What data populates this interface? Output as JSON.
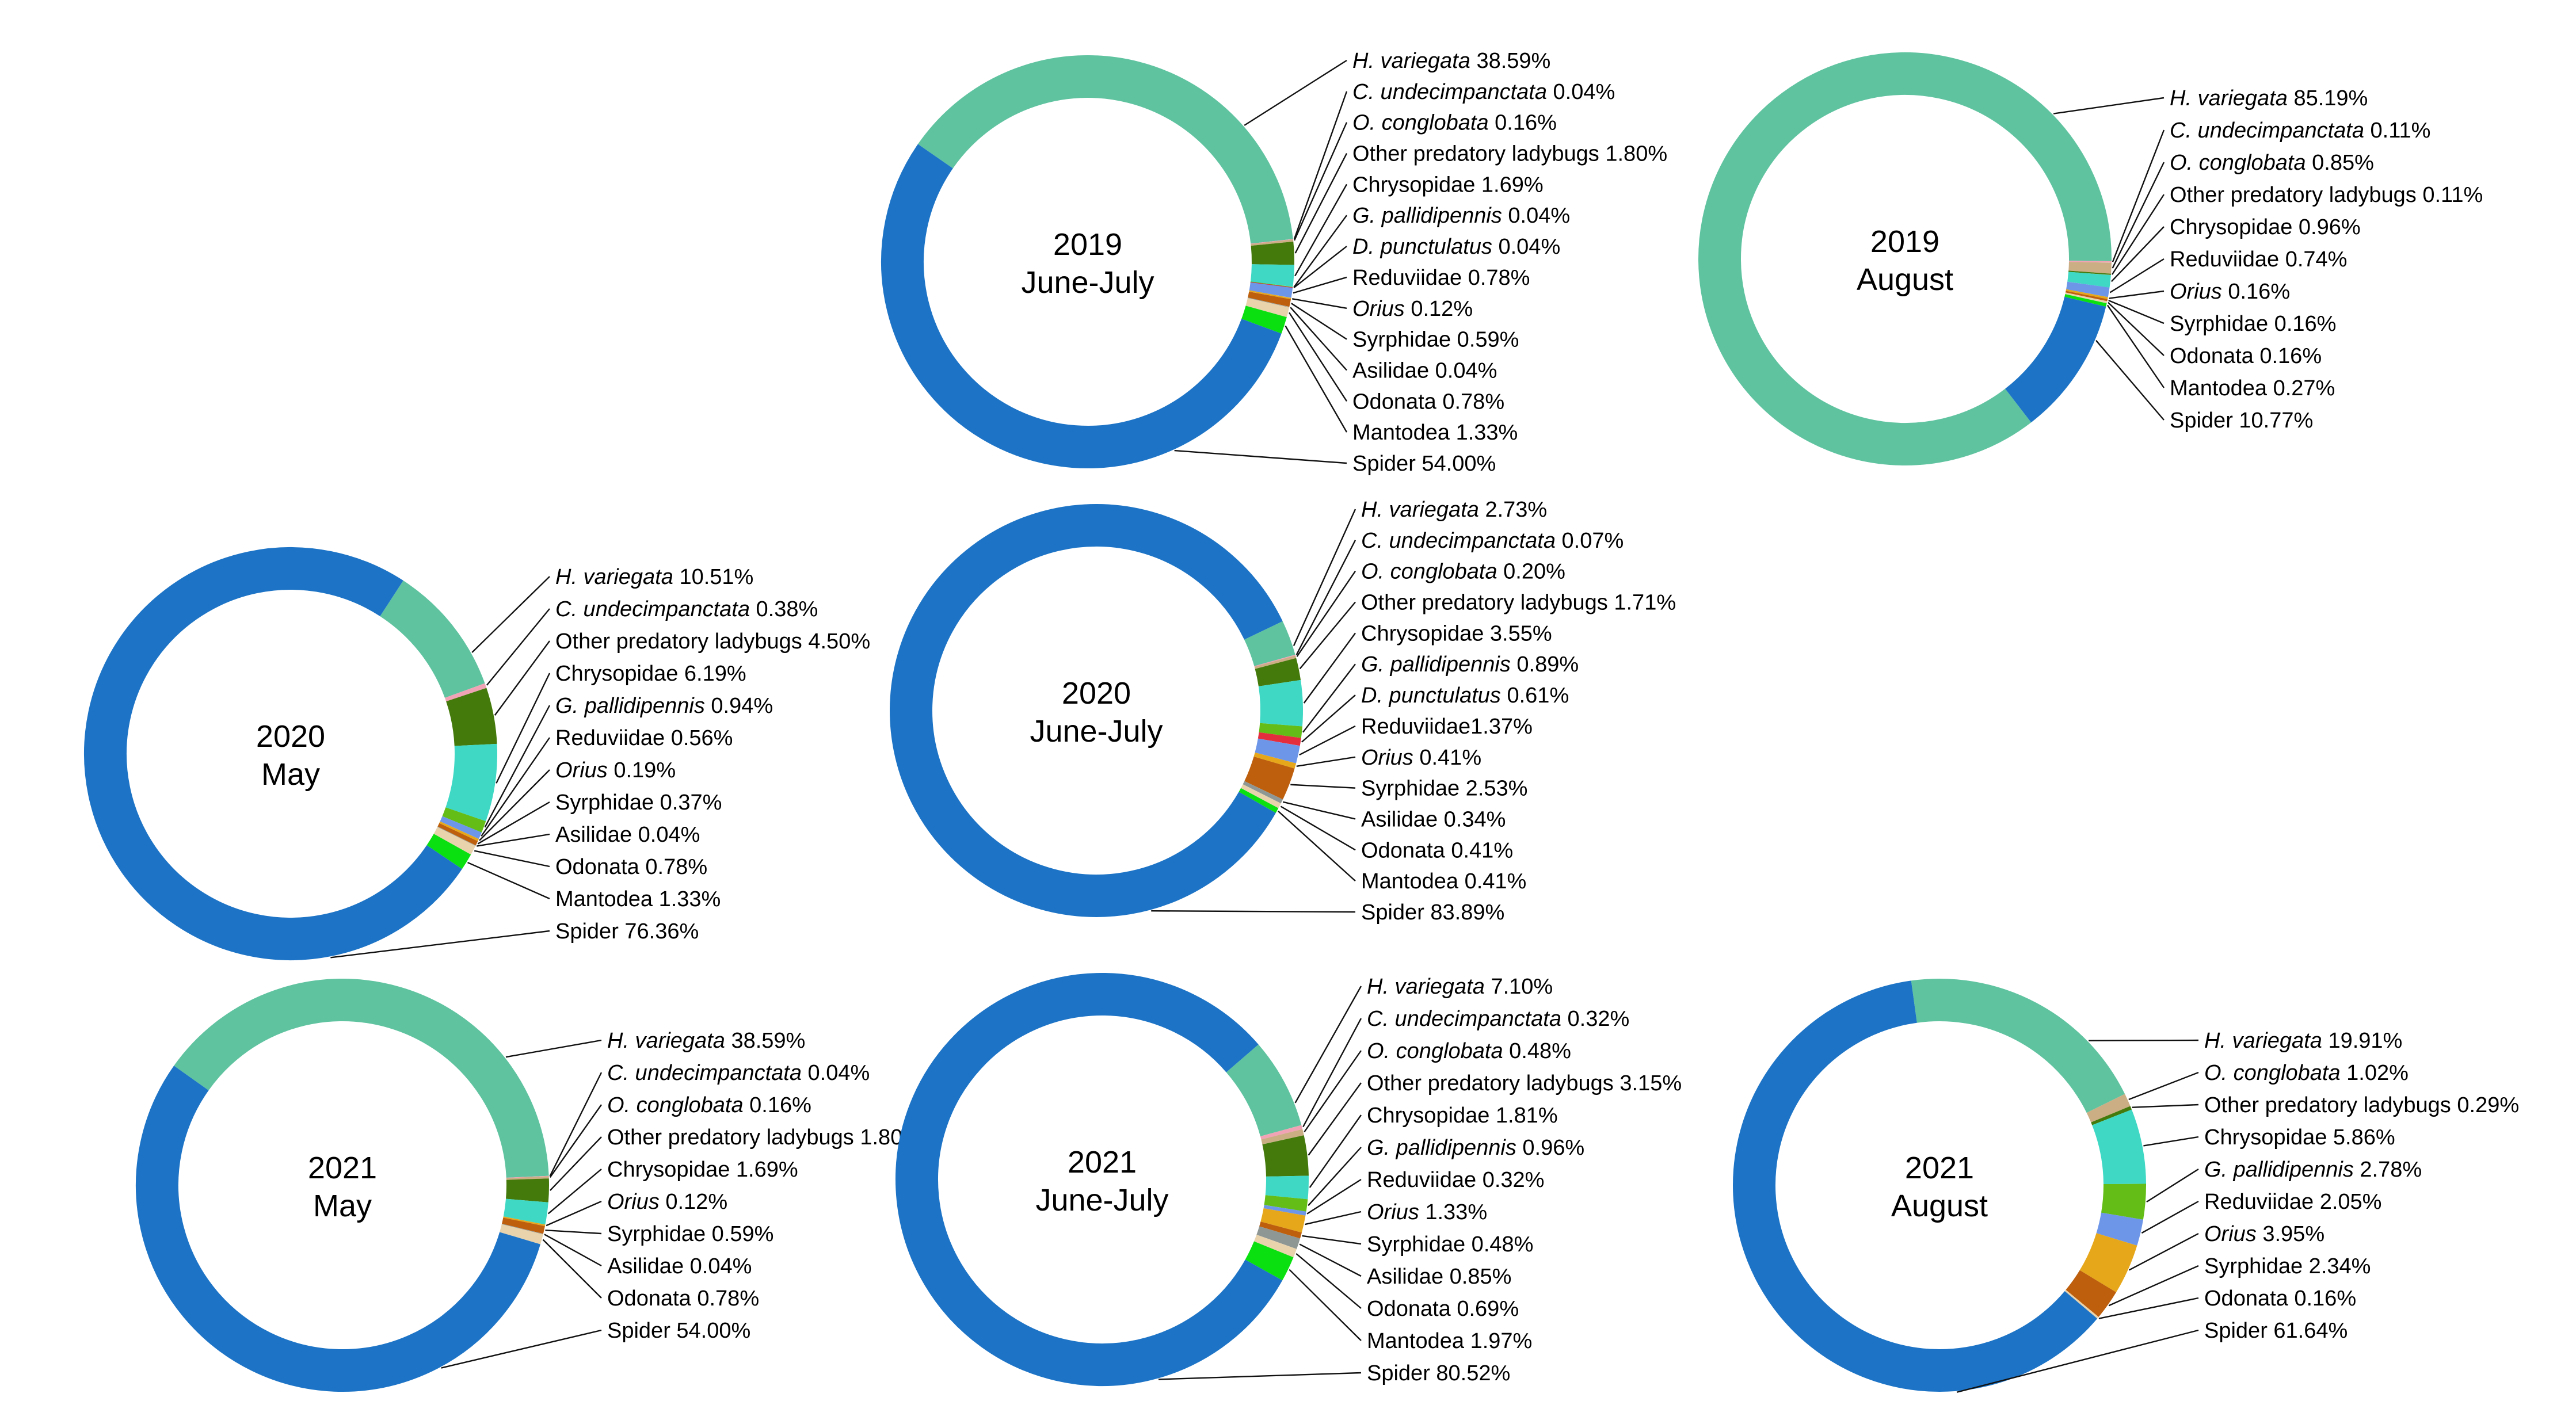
{
  "figure": {
    "background": "#ffffff",
    "description_labels": {
      "percent_suffix": "%"
    }
  },
  "chart_data": {
    "type": "pie",
    "variant": "donut-small-multiples",
    "unit": "%",
    "legend_position": "right-of-each-donut",
    "categories": [
      {
        "key": "h_variegata",
        "name": "H. variegata",
        "italic": true,
        "color": "#5fc3a0"
      },
      {
        "key": "c_undecimpanctata",
        "name": "C. undecimpanctata",
        "italic": true,
        "color": "#f0a3b4"
      },
      {
        "key": "o_conglobata",
        "name": "O. conglobata",
        "italic": true,
        "color": "#cbae84"
      },
      {
        "key": "other_ladybugs",
        "name": "Other predatory ladybugs",
        "italic": false,
        "color": "#447a0c"
      },
      {
        "key": "chrysopidae",
        "name": "Chrysopidae",
        "italic": false,
        "color": "#3ed8c4"
      },
      {
        "key": "g_pallidipennis",
        "name": "G. pallidipennis",
        "italic": true,
        "color": "#63bd16"
      },
      {
        "key": "d_punctulatus",
        "name": "D. punctulatus",
        "italic": true,
        "color": "#e52e3d"
      },
      {
        "key": "reduviidae",
        "name": "Reduviidae",
        "italic": false,
        "color": "#6d96e8"
      },
      {
        "key": "orius",
        "name": "Orius",
        "italic": true,
        "color": "#e7a71b"
      },
      {
        "key": "syrphidae",
        "name": "Syrphidae",
        "italic": false,
        "color": "#bd5f0d"
      },
      {
        "key": "asilidae",
        "name": "Asilidae",
        "italic": false,
        "color": "#8f9794"
      },
      {
        "key": "odonata",
        "name": "Odonata",
        "italic": false,
        "color": "#e8d3ad"
      },
      {
        "key": "mantodea",
        "name": "Mantodea",
        "italic": false,
        "color": "#0ae00f"
      },
      {
        "key": "spider",
        "name": "Spider",
        "italic": false,
        "color": "#1d74c6"
      }
    ],
    "charts": [
      {
        "id": "2019-june-july",
        "title": "2019 June-July",
        "title_lines": [
          "2019",
          "June-July"
        ],
        "slices": [
          {
            "key": "h_variegata",
            "value": 38.59,
            "text": "38.59%"
          },
          {
            "key": "c_undecimpanctata",
            "value": 0.04,
            "text": "0.04%"
          },
          {
            "key": "o_conglobata",
            "value": 0.16,
            "text": "0.16%"
          },
          {
            "key": "other_ladybugs",
            "value": 1.8,
            "text": "1.80%"
          },
          {
            "key": "chrysopidae",
            "value": 1.69,
            "text": "1.69%"
          },
          {
            "key": "g_pallidipennis",
            "value": 0.04,
            "text": "0.04%"
          },
          {
            "key": "d_punctulatus",
            "value": 0.04,
            "text": "0.04%"
          },
          {
            "key": "reduviidae",
            "value": 0.78,
            "text": "0.78%"
          },
          {
            "key": "orius",
            "value": 0.12,
            "text": "0.12%"
          },
          {
            "key": "syrphidae",
            "value": 0.59,
            "text": "0.59%"
          },
          {
            "key": "asilidae",
            "value": 0.04,
            "text": "0.04%"
          },
          {
            "key": "odonata",
            "value": 0.78,
            "text": "0.78%"
          },
          {
            "key": "mantodea",
            "value": 1.33,
            "text": "1.33%"
          },
          {
            "key": "spider",
            "value": 54.0,
            "text": "54.00%"
          }
        ]
      },
      {
        "id": "2019-august",
        "title": "2019 August",
        "title_lines": [
          "2019",
          "August"
        ],
        "slices": [
          {
            "key": "h_variegata",
            "value": 85.19,
            "text": "85.19%"
          },
          {
            "key": "c_undecimpanctata",
            "value": 0.11,
            "text": "0.11%"
          },
          {
            "key": "o_conglobata",
            "value": 0.85,
            "text": "0.85%"
          },
          {
            "key": "other_ladybugs",
            "value": 0.11,
            "text": "0.11%"
          },
          {
            "key": "chrysopidae",
            "value": 0.96,
            "text": "0.96%"
          },
          {
            "key": "reduviidae",
            "value": 0.74,
            "text": "0.74%"
          },
          {
            "key": "orius",
            "value": 0.16,
            "text": "0.16%"
          },
          {
            "key": "syrphidae",
            "value": 0.16,
            "text": "0.16%"
          },
          {
            "key": "odonata",
            "value": 0.16,
            "text": "0.16%"
          },
          {
            "key": "mantodea",
            "value": 0.27,
            "text": "0.27%"
          },
          {
            "key": "spider",
            "value": 10.77,
            "text": "10.77%"
          }
        ]
      },
      {
        "id": "2020-may",
        "title": "2020 May",
        "title_lines": [
          "2020",
          "May"
        ],
        "slices": [
          {
            "key": "h_variegata",
            "value": 10.51,
            "text": "10.51%"
          },
          {
            "key": "c_undecimpanctata",
            "value": 0.38,
            "text": "0.38%"
          },
          {
            "key": "other_ladybugs",
            "value": 4.5,
            "text": "4.50%"
          },
          {
            "key": "chrysopidae",
            "value": 6.19,
            "text": "6.19%"
          },
          {
            "key": "g_pallidipennis",
            "value": 0.94,
            "text": "0.94%"
          },
          {
            "key": "reduviidae",
            "value": 0.56,
            "text": "0.56%"
          },
          {
            "key": "orius",
            "value": 0.19,
            "text": "0.19%"
          },
          {
            "key": "syrphidae",
            "value": 0.37,
            "text": "0.37%"
          },
          {
            "key": "asilidae",
            "value": 0.04,
            "text": "0.04%"
          },
          {
            "key": "odonata",
            "value": 0.78,
            "text": "0.78%"
          },
          {
            "key": "mantodea",
            "value": 1.33,
            "text": "1.33%"
          },
          {
            "key": "spider",
            "value": 76.36,
            "text": "76.36%"
          }
        ]
      },
      {
        "id": "2020-june-july",
        "title": "2020 June-July",
        "title_lines": [
          "2020",
          "June-July"
        ],
        "slices": [
          {
            "key": "h_variegata",
            "value": 2.73,
            "text": "2.73%"
          },
          {
            "key": "c_undecimpanctata",
            "value": 0.07,
            "text": "0.07%"
          },
          {
            "key": "o_conglobata",
            "value": 0.2,
            "text": "0.20%"
          },
          {
            "key": "other_ladybugs",
            "value": 1.71,
            "text": "1.71%"
          },
          {
            "key": "chrysopidae",
            "value": 3.55,
            "text": "3.55%"
          },
          {
            "key": "g_pallidipennis",
            "value": 0.89,
            "text": "0.89%"
          },
          {
            "key": "d_punctulatus",
            "value": 0.61,
            "text": "0.61%"
          },
          {
            "key": "reduviidae",
            "value": 1.37,
            "text": "1.37%",
            "nospace": true
          },
          {
            "key": "orius",
            "value": 0.41,
            "text": "0.41%"
          },
          {
            "key": "syrphidae",
            "value": 2.53,
            "text": "2.53%"
          },
          {
            "key": "asilidae",
            "value": 0.34,
            "text": "0.34%"
          },
          {
            "key": "odonata",
            "value": 0.41,
            "text": "0.41%"
          },
          {
            "key": "mantodea",
            "value": 0.41,
            "text": "0.41%"
          },
          {
            "key": "spider",
            "value": 83.89,
            "text": "83.89%"
          }
        ]
      },
      {
        "id": "2021-may",
        "title": "2021 May",
        "title_lines": [
          "2021",
          "May"
        ],
        "slices": [
          {
            "key": "h_variegata",
            "value": 38.59,
            "text": "38.59%"
          },
          {
            "key": "c_undecimpanctata",
            "value": 0.04,
            "text": "0.04%"
          },
          {
            "key": "o_conglobata",
            "value": 0.16,
            "text": "0.16%"
          },
          {
            "key": "other_ladybugs",
            "value": 1.8,
            "text": "1.80%"
          },
          {
            "key": "chrysopidae",
            "value": 1.69,
            "text": "1.69%"
          },
          {
            "key": "orius",
            "value": 0.12,
            "text": "0.12%"
          },
          {
            "key": "syrphidae",
            "value": 0.59,
            "text": "0.59%"
          },
          {
            "key": "asilidae",
            "value": 0.04,
            "text": "0.04%"
          },
          {
            "key": "odonata",
            "value": 0.78,
            "text": "0.78%"
          },
          {
            "key": "spider",
            "value": 54.0,
            "text": "54.00%"
          }
        ]
      },
      {
        "id": "2021-june-july",
        "title": "2021 June-July",
        "title_lines": [
          "2021",
          "June-July"
        ],
        "slices": [
          {
            "key": "h_variegata",
            "value": 7.1,
            "text": "7.10%"
          },
          {
            "key": "c_undecimpanctata",
            "value": 0.32,
            "text": "0.32%"
          },
          {
            "key": "o_conglobata",
            "value": 0.48,
            "text": "0.48%"
          },
          {
            "key": "other_ladybugs",
            "value": 3.15,
            "text": "3.15%"
          },
          {
            "key": "chrysopidae",
            "value": 1.81,
            "text": "1.81%"
          },
          {
            "key": "g_pallidipennis",
            "value": 0.96,
            "text": "0.96%"
          },
          {
            "key": "reduviidae",
            "value": 0.32,
            "text": "0.32%"
          },
          {
            "key": "orius",
            "value": 1.33,
            "text": "1.33%"
          },
          {
            "key": "syrphidae",
            "value": 0.48,
            "text": "0.48%"
          },
          {
            "key": "asilidae",
            "value": 0.85,
            "text": "0.85%"
          },
          {
            "key": "odonata",
            "value": 0.69,
            "text": "0.69%"
          },
          {
            "key": "mantodea",
            "value": 1.97,
            "text": "1.97%"
          },
          {
            "key": "spider",
            "value": 80.52,
            "text": "80.52%"
          }
        ]
      },
      {
        "id": "2021-august",
        "title": "2021 August",
        "title_lines": [
          "2021",
          "August"
        ],
        "slices": [
          {
            "key": "h_variegata",
            "value": 19.91,
            "text": "19.91%"
          },
          {
            "key": "o_conglobata",
            "value": 1.02,
            "text": "1.02%"
          },
          {
            "key": "other_ladybugs",
            "value": 0.29,
            "text": "0.29%"
          },
          {
            "key": "chrysopidae",
            "value": 5.86,
            "text": "5.86%"
          },
          {
            "key": "g_pallidipennis",
            "value": 2.78,
            "text": "2.78%"
          },
          {
            "key": "reduviidae",
            "value": 2.05,
            "text": "2.05%"
          },
          {
            "key": "orius",
            "value": 3.95,
            "text": "3.95%"
          },
          {
            "key": "syrphidae",
            "value": 2.34,
            "text": "2.34%"
          },
          {
            "key": "odonata",
            "value": 0.16,
            "text": "0.16%"
          },
          {
            "key": "spider",
            "value": 61.64,
            "text": "61.64%"
          }
        ]
      }
    ]
  }
}
